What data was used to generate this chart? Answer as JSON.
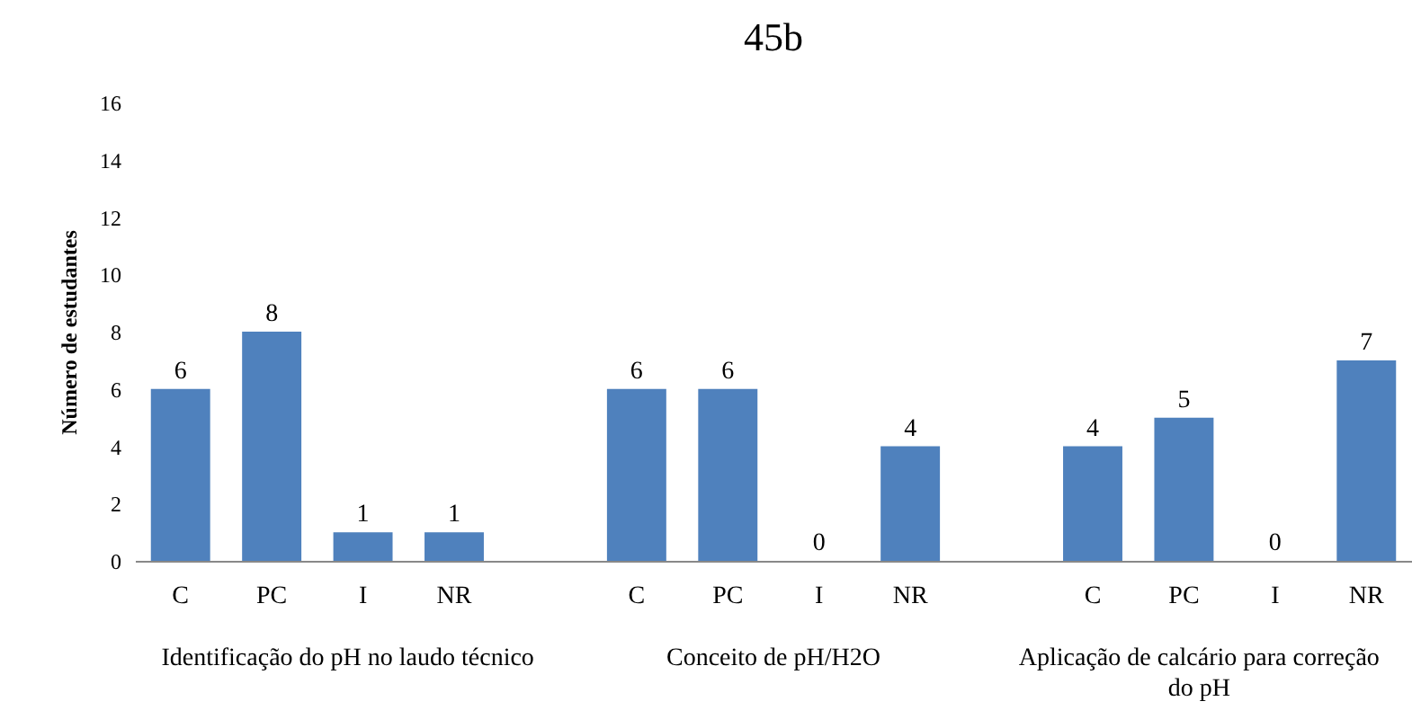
{
  "chart_data": {
    "type": "bar",
    "title": "45b",
    "ylabel": "Número de estudantes",
    "categories": [
      "C",
      "PC",
      "I",
      "NR",
      null,
      "C",
      "PC",
      "I",
      "NR",
      null,
      "C",
      "PC",
      "I",
      "NR"
    ],
    "series": [
      {
        "color": "#4f81bd",
        "values": [
          6,
          8,
          1,
          1,
          null,
          6,
          6,
          0,
          4,
          null,
          4,
          5,
          0,
          7
        ]
      }
    ],
    "ylim": [
      0,
      16
    ],
    "yticks": [
      0,
      2,
      4,
      6,
      8,
      10,
      12,
      14,
      16
    ],
    "grid": false,
    "data_labels": true,
    "annotations": [
      "Identificação do pH no laudo técnico",
      "Conceito de pH/H2O",
      "Aplicação de calcário para correção do pH"
    ]
  }
}
